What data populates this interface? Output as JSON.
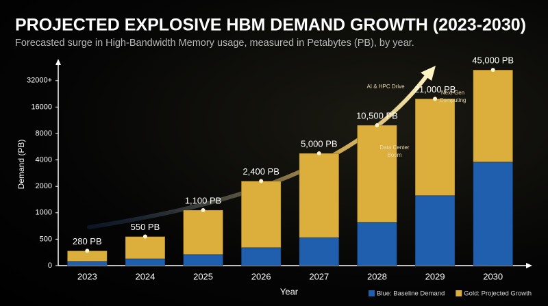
{
  "chart_data": {
    "type": "stacked-bar",
    "title": "PROJECTED EXPLOSIVE HBM DEMAND GROWTH (2023-2030)",
    "subtitle": "Forecasted surge in High-Bandwidth Memory usage, measured in Petabytes (PB), by year.",
    "x_label": "Year",
    "y_label": "Demand (PB)",
    "categories": [
      "2023",
      "2024",
      "2025",
      "2026",
      "2027",
      "2028",
      "2029",
      "2030"
    ],
    "series": [
      {
        "name": "Blue: Baseline Demand",
        "color": "#1f5fae",
        "values": [
          80,
          130,
          210,
          340,
          530,
          820,
          1650,
          3840
        ]
      },
      {
        "name": "Gold: Projected Growth",
        "color": "#dcae3c",
        "values": [
          200,
          420,
          890,
          2060,
          4470,
          9680,
          19350,
          41160
        ]
      }
    ],
    "totals": {
      "values": [
        280,
        550,
        1100,
        2400,
        5000,
        10500,
        21000,
        45000
      ],
      "value_labels": [
        "280 PB",
        "550 PB",
        "1,100 PB",
        "2,400 PB",
        "5,000 PB",
        "10,500 PB",
        "21,000 PB",
        "45,000 PB"
      ]
    },
    "ylim": [
      0,
      48000
    ],
    "yticks": [
      0,
      500,
      1000,
      2000,
      4000,
      8000,
      16000,
      {
        "value": 32000,
        "label": "32000+"
      }
    ],
    "annotations": [
      "AI & HPC Drive",
      "Next-Gen Computing",
      "Data Center Boom"
    ],
    "legend": "bottom-right"
  }
}
